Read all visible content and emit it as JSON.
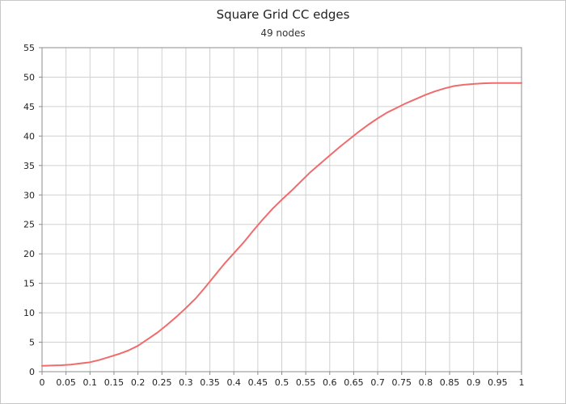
{
  "chart_data": {
    "type": "line",
    "title": "Square Grid CC edges",
    "subtitle": "49 nodes",
    "xlabel": "",
    "ylabel": "",
    "xlim": [
      0,
      1
    ],
    "ylim": [
      0,
      55
    ],
    "grid": true,
    "x_ticks": [
      "0",
      "0.05",
      "0.1",
      "0.15",
      "0.2",
      "0.25",
      "0.3",
      "0.35",
      "0.4",
      "0.45",
      "0.5",
      "0.55",
      "0.6",
      "0.65",
      "0.7",
      "0.75",
      "0.8",
      "0.85",
      "0.9",
      "0.95",
      "1"
    ],
    "y_ticks": [
      "0",
      "5",
      "10",
      "15",
      "20",
      "25",
      "30",
      "35",
      "40",
      "45",
      "50",
      "55"
    ],
    "series": [
      {
        "color": "#f06c6c",
        "x": [
          0,
          0.02,
          0.04,
          0.06,
          0.08,
          0.1,
          0.12,
          0.14,
          0.16,
          0.18,
          0.2,
          0.22,
          0.24,
          0.26,
          0.28,
          0.3,
          0.32,
          0.34,
          0.36,
          0.38,
          0.4,
          0.42,
          0.44,
          0.46,
          0.48,
          0.5,
          0.52,
          0.54,
          0.56,
          0.58,
          0.6,
          0.62,
          0.64,
          0.66,
          0.68,
          0.7,
          0.72,
          0.74,
          0.76,
          0.78,
          0.8,
          0.82,
          0.84,
          0.86,
          0.88,
          0.9,
          0.92,
          0.94,
          0.96,
          0.98,
          1.0
        ],
        "values": [
          1.0,
          1.05,
          1.1,
          1.2,
          1.4,
          1.6,
          2.0,
          2.5,
          3.0,
          3.6,
          4.4,
          5.5,
          6.6,
          7.9,
          9.3,
          10.8,
          12.4,
          14.3,
          16.3,
          18.3,
          20.1,
          21.9,
          23.9,
          25.8,
          27.6,
          29.2,
          30.7,
          32.3,
          33.9,
          35.3,
          36.7,
          38.1,
          39.4,
          40.7,
          41.9,
          43.0,
          44.0,
          44.8,
          45.6,
          46.3,
          47.0,
          47.6,
          48.1,
          48.5,
          48.7,
          48.85,
          48.95,
          49.0,
          49.0,
          49.0,
          49.0
        ]
      }
    ]
  }
}
